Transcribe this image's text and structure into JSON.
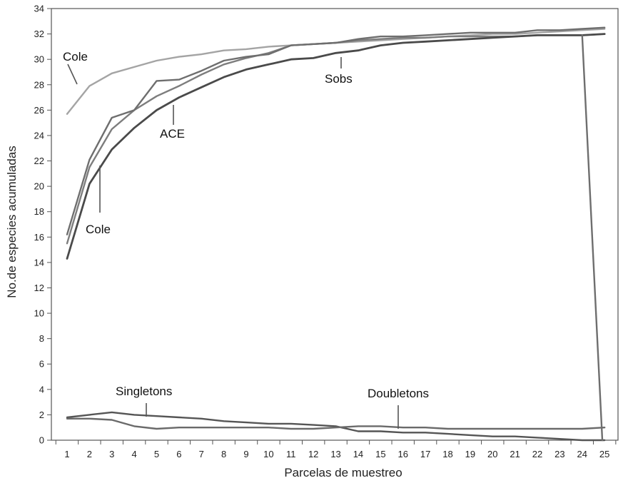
{
  "chart_data": {
    "type": "line",
    "xlabel": "Parcelas de muestreo",
    "ylabel": "No.de especies acumuladas",
    "xlim": [
      0.3,
      25.6
    ],
    "ylim": [
      0,
      34
    ],
    "x": [
      1,
      2,
      3,
      4,
      5,
      6,
      7,
      8,
      9,
      10,
      11,
      12,
      13,
      14,
      15,
      16,
      17,
      18,
      19,
      20,
      21,
      22,
      23,
      24,
      25
    ],
    "yticks": [
      0,
      2,
      4,
      6,
      8,
      10,
      12,
      14,
      16,
      18,
      20,
      22,
      24,
      26,
      28,
      30,
      32,
      34
    ],
    "grid": false,
    "series": [
      {
        "color": "#a4a4a4",
        "width": 2.4,
        "values": [
          25.7,
          27.9,
          28.9,
          29.4,
          29.9,
          30.2,
          30.4,
          30.7,
          30.8,
          31.0,
          31.1,
          31.2,
          31.3,
          31.4,
          31.5,
          31.6,
          31.7,
          31.8,
          31.9,
          32.0,
          32.0,
          32.1,
          32.2,
          32.3,
          32.4
        ]
      },
      {
        "color": "#7d7d7d",
        "width": 2.4,
        "values": [
          15.5,
          21.5,
          24.5,
          26.0,
          27.1,
          27.9,
          28.8,
          29.6,
          30.1,
          30.5,
          31.1,
          31.2,
          31.3,
          31.5,
          31.6,
          31.7,
          31.7,
          31.8,
          31.8,
          31.8,
          31.8,
          31.9,
          31.9,
          31.9,
          32.0
        ]
      },
      {
        "color": "#6e6e6e",
        "width": 2.4,
        "values": [
          16.2,
          22.1,
          25.4,
          26.0,
          28.3,
          28.4,
          29.1,
          29.9,
          30.2,
          30.4,
          31.1,
          31.2,
          31.3,
          31.6,
          31.8,
          31.8,
          31.9,
          32.0,
          32.1,
          32.1,
          32.1,
          32.3,
          32.3,
          32.4,
          32.5
        ]
      },
      {
        "color": "#4a4a4a",
        "width": 2.8,
        "values": [
          14.3,
          20.2,
          22.9,
          24.6,
          26.0,
          27.0,
          27.8,
          28.6,
          29.2,
          29.6,
          30.0,
          30.1,
          30.5,
          30.7,
          31.1,
          31.3,
          31.4,
          31.5,
          31.6,
          31.7,
          31.8,
          31.9,
          31.9,
          31.9,
          32.0
        ]
      },
      {
        "color": "#555555",
        "width": 2.4,
        "values": [
          1.8,
          2.0,
          2.2,
          2.0,
          1.9,
          1.8,
          1.7,
          1.5,
          1.4,
          1.3,
          1.3,
          1.2,
          1.1,
          0.7,
          0.7,
          0.6,
          0.6,
          0.5,
          0.4,
          0.3,
          0.3,
          0.2,
          0.1,
          0.0,
          0.0
        ]
      },
      {
        "color": "#6a6a6a",
        "width": 2.4,
        "values": [
          1.7,
          1.7,
          1.6,
          1.1,
          0.9,
          1.0,
          1.0,
          1.0,
          1.0,
          1.0,
          0.9,
          0.9,
          1.0,
          1.1,
          1.1,
          1.0,
          1.0,
          0.9,
          0.9,
          0.9,
          0.9,
          0.9,
          0.9,
          0.9,
          1.0
        ]
      }
    ],
    "drop_line": {
      "color": "#6e6e6e",
      "from": [
        24,
        31.9
      ],
      "to": [
        24.9,
        0.0
      ]
    },
    "annotations": [
      {
        "text": "Cole",
        "target": [
          1.55,
          27.1
        ]
      },
      {
        "text": "ACE",
        "target": [
          5.75,
          27.7
        ]
      },
      {
        "text": "Sobs",
        "target": [
          13.1,
          31.3
        ]
      },
      {
        "text": "Cole",
        "target": [
          2.9,
          22.4
        ]
      },
      {
        "text": "Singletons",
        "target": [
          4.7,
          1.9
        ]
      },
      {
        "text": "Doubletons",
        "target": [
          15.8,
          1.0
        ]
      }
    ]
  }
}
